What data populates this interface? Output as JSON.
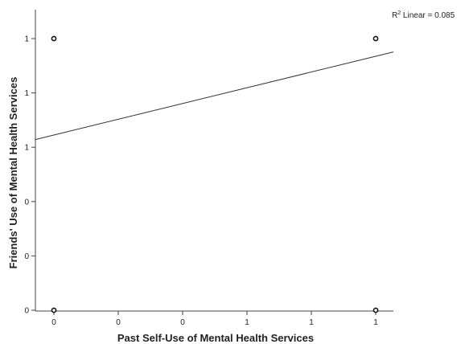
{
  "chart_data": {
    "type": "scatter",
    "xlabel": "Past Self-Use of Mental Health Services",
    "ylabel": "Friends' Use of Mental Health Services",
    "xlim": [
      -0.05,
      1.05
    ],
    "ylim": [
      0,
      1.0
    ],
    "x_ticks": [
      {
        "value": 0.0,
        "label": "0"
      },
      {
        "value": 0.2,
        "label": "0"
      },
      {
        "value": 0.4,
        "label": "0"
      },
      {
        "value": 0.6,
        "label": "1"
      },
      {
        "value": 0.8,
        "label": "1"
      },
      {
        "value": 1.0,
        "label": "1"
      }
    ],
    "y_ticks": [
      {
        "value": 0.0,
        "label": "0"
      },
      {
        "value": 0.2,
        "label": "0"
      },
      {
        "value": 0.4,
        "label": "0"
      },
      {
        "value": 0.6,
        "label": "1"
      },
      {
        "value": 0.8,
        "label": "1"
      },
      {
        "value": 1.0,
        "label": "1"
      }
    ],
    "points": [
      {
        "x": 0,
        "y": 0
      },
      {
        "x": 0,
        "y": 1
      },
      {
        "x": 1,
        "y": 0
      },
      {
        "x": 1,
        "y": 1
      }
    ],
    "fit_line": {
      "intercept": 0.645,
      "slope": 0.29
    },
    "legend": {
      "prefix": "R",
      "superscript": "2",
      "text": " Linear = 0.085",
      "position": "top-right"
    },
    "grid": false
  }
}
